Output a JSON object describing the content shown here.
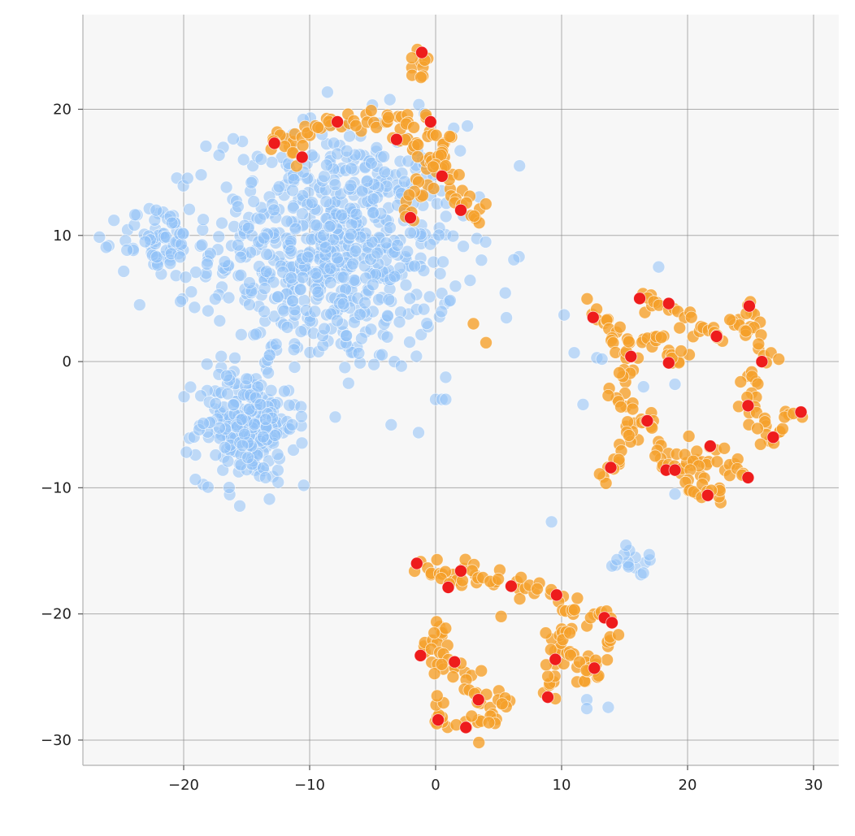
{
  "chart_data": {
    "type": "scatter",
    "title": "",
    "xlabel": "",
    "ylabel": "",
    "xlim": [
      -28,
      32
    ],
    "ylim": [
      -32,
      27.5
    ],
    "xticks": [
      -20,
      -10,
      0,
      10,
      20,
      30
    ],
    "yticks": [
      -30,
      -20,
      -10,
      0,
      10,
      20
    ],
    "xtick_labels": [
      "−20",
      "−10",
      "0",
      "10",
      "20",
      "30"
    ],
    "ytick_labels": [
      "−30",
      "−20",
      "−10",
      "0",
      "10",
      "20"
    ],
    "grid": true,
    "legend": "none",
    "colors": {
      "background": "#f7f7f7",
      "grid": "#8c8c8c",
      "series_0": "#8fc1f7",
      "series_1": "#f5a02a",
      "series_2": "#ee1c1c"
    },
    "series": [
      {
        "color": "#8fc1f7",
        "opacity": 0.55,
        "clusters": [
          {
            "cx": -8,
            "cy": 9,
            "sx": 6.5,
            "sy": 6.5,
            "n": 700
          },
          {
            "cx": -15,
            "cy": -5,
            "sx": 2.6,
            "sy": 3.0,
            "n": 230
          },
          {
            "cx": -22,
            "cy": 9.5,
            "sx": 2.0,
            "sy": 2.0,
            "n": 70
          },
          {
            "cx": 16,
            "cy": -15.8,
            "sx": 1.0,
            "sy": 0.8,
            "n": 14
          }
        ],
        "points": [
          [
            0,
            -3
          ],
          [
            0.5,
            -3
          ],
          [
            0.8,
            -3
          ],
          [
            9.2,
            -12.7
          ],
          [
            10.2,
            3.7
          ],
          [
            11,
            0.7
          ],
          [
            11.7,
            -3.4
          ],
          [
            12.8,
            0.3
          ],
          [
            13.2,
            0.2
          ],
          [
            12,
            -26.8
          ],
          [
            12,
            -27.5
          ],
          [
            13.7,
            -27.4
          ],
          [
            14,
            -16.2
          ],
          [
            14.4,
            -15.7
          ],
          [
            17.7,
            7.5
          ],
          [
            16.5,
            -2
          ],
          [
            19,
            -1.8
          ],
          [
            19,
            -10.5
          ],
          [
            -23.5,
            4.5
          ],
          [
            -13.5,
            -9.2
          ],
          [
            -2,
            10.2
          ]
        ]
      },
      {
        "color": "#f5a02a",
        "opacity": 0.8,
        "paths": [
          [
            [
              -12.8,
              17.2
            ],
            [
              -10,
              18.4
            ],
            [
              -7,
              19.0
            ],
            [
              -4,
              19.0
            ],
            [
              -1,
              19.0
            ],
            [
              1,
              17.5
            ],
            [
              0,
              15.0
            ],
            [
              -2,
              13.0
            ],
            [
              -2,
              11.2
            ]
          ],
          [
            [
              -3,
              18.0
            ],
            [
              -1,
              16.0
            ],
            [
              1,
              15.5
            ],
            [
              2,
              13.5
            ],
            [
              2.5,
              12.0
            ],
            [
              3.5,
              11.5
            ],
            [
              4,
              12.2
            ]
          ],
          [
            [
              -12.8,
              17.5
            ],
            [
              -10.5,
              16.2
            ]
          ],
          [
            [
              -1.5,
              23.0
            ],
            [
              -1.3,
              24.2
            ],
            [
              -0.9,
              22.5
            ]
          ],
          [
            [
              12,
              4.5
            ],
            [
              14,
              3.0
            ],
            [
              15.5,
              0.5
            ],
            [
              14.5,
              -2.5
            ],
            [
              16.5,
              -4.5
            ],
            [
              14.5,
              -7.0
            ],
            [
              14.0,
              -8.5
            ],
            [
              12.5,
              -9.2
            ]
          ],
          [
            [
              16.2,
              5.0
            ],
            [
              18.5,
              4.5
            ],
            [
              20.5,
              3.0
            ],
            [
              22.5,
              2.0
            ],
            [
              25.0,
              4.3
            ],
            [
              25.8,
              0.0
            ],
            [
              24.8,
              -3.5
            ],
            [
              26.8,
              -6.0
            ],
            [
              29.0,
              -4.0
            ]
          ],
          [
            [
              16.8,
              -4.7
            ],
            [
              18.0,
              -6.5
            ],
            [
              18.3,
              -8.5
            ],
            [
              20.0,
              -8.5
            ],
            [
              21.8,
              -6.7
            ],
            [
              23.5,
              -8.0
            ],
            [
              24.8,
              -9.2
            ]
          ],
          [
            [
              15.2,
              0.5
            ],
            [
              17.5,
              2.0
            ],
            [
              18.5,
              -0.1
            ],
            [
              20.0,
              1.0
            ]
          ],
          [
            [
              20.0,
              -7.0
            ],
            [
              20.5,
              -10.5
            ],
            [
              21.6,
              -10.6
            ],
            [
              23.0,
              -9.5
            ]
          ],
          [
            [
              -1.5,
              -16.0
            ],
            [
              0.5,
              -16.8
            ],
            [
              2.0,
              -16.6
            ],
            [
              4.0,
              -17.5
            ],
            [
              6.0,
              -17.8
            ],
            [
              8.0,
              -18.0
            ],
            [
              9.6,
              -18.5
            ],
            [
              11.0,
              -19.5
            ],
            [
              13.4,
              -20.3
            ],
            [
              14.0,
              -20.7
            ]
          ],
          [
            [
              1.0,
              -17.9
            ],
            [
              2.0,
              -17.3
            ]
          ],
          [
            [
              -1.3,
              -23.3
            ],
            [
              0.5,
              -21.0
            ],
            [
              0.3,
              -24.5
            ],
            [
              1.5,
              -23.8
            ],
            [
              3.0,
              -25.0
            ],
            [
              3.4,
              -26.8
            ],
            [
              5.5,
              -26.5
            ],
            [
              4.0,
              -28.5
            ],
            [
              2.5,
              -28.9
            ],
            [
              0.2,
              -28.4
            ],
            [
              0.0,
              -26.5
            ]
          ],
          [
            [
              8.9,
              -26.6
            ],
            [
              9.5,
              -23.6
            ],
            [
              9.8,
              -21.0
            ],
            [
              11.5,
              -23.5
            ],
            [
              12.6,
              -24.3
            ],
            [
              14.0,
              -22.5
            ],
            [
              13.8,
              -20.8
            ]
          ],
          [
            [
              11.0,
              -25.5
            ],
            [
              12.5,
              -24.0
            ]
          ]
        ],
        "points": [
          [
            5.2,
            -20.2
          ],
          [
            3.0,
            3.0
          ],
          [
            4.0,
            1.5
          ]
        ]
      },
      {
        "color": "#ee1c1c",
        "opacity": 1.0,
        "points": [
          [
            -1.1,
            24.5
          ],
          [
            -12.8,
            17.3
          ],
          [
            -10.6,
            16.2
          ],
          [
            -7.8,
            19.0
          ],
          [
            -0.4,
            19.0
          ],
          [
            -3.1,
            17.6
          ],
          [
            0.5,
            14.7
          ],
          [
            2.0,
            12.0
          ],
          [
            -2.0,
            11.4
          ],
          [
            12.5,
            3.5
          ],
          [
            16.2,
            5.0
          ],
          [
            18.5,
            4.6
          ],
          [
            24.9,
            4.4
          ],
          [
            22.3,
            2.0
          ],
          [
            15.5,
            0.4
          ],
          [
            18.5,
            -0.1
          ],
          [
            25.9,
            0.0
          ],
          [
            24.8,
            -3.5
          ],
          [
            29.0,
            -4.0
          ],
          [
            16.8,
            -4.7
          ],
          [
            26.8,
            -6.0
          ],
          [
            21.8,
            -6.7
          ],
          [
            13.9,
            -8.4
          ],
          [
            18.3,
            -8.6
          ],
          [
            19.0,
            -8.6
          ],
          [
            24.8,
            -9.2
          ],
          [
            21.6,
            -10.6
          ],
          [
            -1.5,
            -16.0
          ],
          [
            2.0,
            -16.6
          ],
          [
            1.0,
            -17.9
          ],
          [
            6.0,
            -17.8
          ],
          [
            9.6,
            -18.5
          ],
          [
            13.4,
            -20.3
          ],
          [
            14.0,
            -20.7
          ],
          [
            -1.2,
            -23.3
          ],
          [
            1.5,
            -23.8
          ],
          [
            9.5,
            -23.6
          ],
          [
            12.6,
            -24.3
          ],
          [
            3.4,
            -26.8
          ],
          [
            8.9,
            -26.6
          ],
          [
            0.2,
            -28.4
          ],
          [
            2.4,
            -29.0
          ]
        ]
      }
    ]
  }
}
